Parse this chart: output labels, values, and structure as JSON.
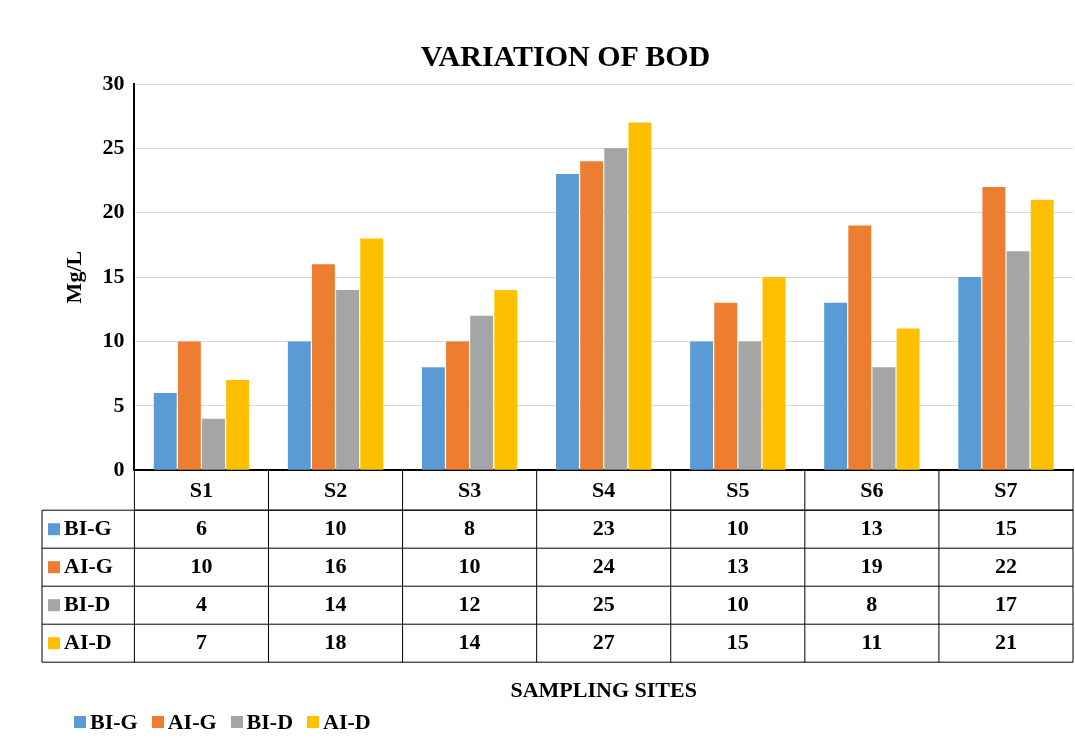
{
  "chart_data": {
    "type": "bar",
    "title": "VARIATION OF BOD",
    "annotations": [
      "SAMPLING SITES"
    ],
    "ylabel": "Mg/L",
    "categories": [
      "S1",
      "S2",
      "S3",
      "S4",
      "S5",
      "S6",
      "S7"
    ],
    "series": [
      {
        "name": "BI-G",
        "color": "#5b9bd5",
        "values": [
          6,
          10,
          8,
          23,
          10,
          13,
          15
        ]
      },
      {
        "name": "AI-G",
        "color": "#ed7d31",
        "values": [
          10,
          16,
          10,
          24,
          13,
          19,
          22
        ]
      },
      {
        "name": "BI-D",
        "color": "#a5a5a5",
        "values": [
          4,
          14,
          12,
          25,
          10,
          8,
          17
        ]
      },
      {
        "name": "AI-D",
        "color": "#ffc000",
        "values": [
          7,
          18,
          14,
          27,
          15,
          11,
          21
        ]
      }
    ],
    "ylim": [
      0,
      30
    ],
    "yticks": [
      0,
      5,
      10,
      15,
      20,
      25,
      30
    ],
    "grid": "y",
    "legend": "bottom left",
    "data_labels": true
  }
}
